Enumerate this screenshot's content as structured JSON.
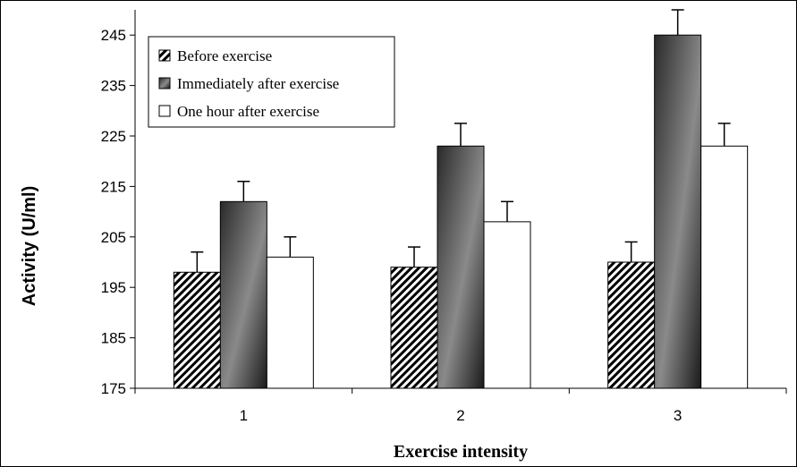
{
  "chart_data": {
    "type": "bar",
    "categories": [
      "1",
      "2",
      "3"
    ],
    "series": [
      {
        "name": "Before exercise",
        "values": [
          198,
          199,
          200
        ],
        "errors": [
          4,
          4,
          4
        ],
        "fill": "hatch"
      },
      {
        "name": "Immediately after exercise",
        "values": [
          212,
          223,
          245
        ],
        "errors": [
          4,
          4.5,
          5
        ],
        "fill": "dark-gradient"
      },
      {
        "name": "One hour after exercise",
        "values": [
          201,
          208,
          223
        ],
        "errors": [
          4,
          4,
          4.5
        ],
        "fill": "white"
      }
    ],
    "title": "",
    "xlabel": "Exercise intensity",
    "ylabel": "Activity (U/ml)",
    "ylim": [
      175,
      250
    ],
    "yticks": [
      175,
      185,
      195,
      205,
      215,
      225,
      235,
      245
    ],
    "grid": false,
    "legend_position": "top-left",
    "colors": {
      "axis": "#000000",
      "bar_dark": "#2a2a2a",
      "bar_dark_highlight": "#8a8a8a",
      "bar_white": "#ffffff"
    }
  }
}
